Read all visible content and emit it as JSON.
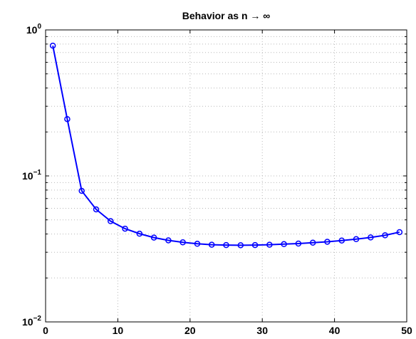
{
  "chart_data": {
    "type": "line",
    "title": "Behavior as n → ∞",
    "xlabel": "",
    "ylabel": "",
    "xlim": [
      0,
      50
    ],
    "ylim": [
      0.01,
      1
    ],
    "yscale": "log",
    "grid": true,
    "x_ticks": [
      {
        "value": 0,
        "label": "0"
      },
      {
        "value": 10,
        "label": "10"
      },
      {
        "value": 20,
        "label": "20"
      },
      {
        "value": 30,
        "label": "30"
      },
      {
        "value": 40,
        "label": "40"
      },
      {
        "value": 50,
        "label": "50"
      }
    ],
    "y_ticks": [
      {
        "value": 0.01,
        "base": "10",
        "exp": "−2"
      },
      {
        "value": 0.1,
        "base": "10",
        "exp": "−1"
      },
      {
        "value": 1,
        "base": "10",
        "exp": "0"
      }
    ],
    "series": [
      {
        "color": "#0000ff",
        "marker": "circle",
        "x": [
          1,
          3,
          5,
          7,
          9,
          11,
          13,
          15,
          17,
          19,
          21,
          23,
          25,
          27,
          29,
          31,
          33,
          35,
          37,
          39,
          41,
          43,
          45,
          47,
          49
        ],
        "y": [
          0.78,
          0.245,
          0.079,
          0.059,
          0.049,
          0.0435,
          0.0402,
          0.0378,
          0.0362,
          0.0351,
          0.0343,
          0.0338,
          0.0336,
          0.0335,
          0.0336,
          0.0338,
          0.0341,
          0.0344,
          0.0349,
          0.0354,
          0.0361,
          0.0369,
          0.0379,
          0.0392,
          0.0412
        ]
      }
    ]
  }
}
